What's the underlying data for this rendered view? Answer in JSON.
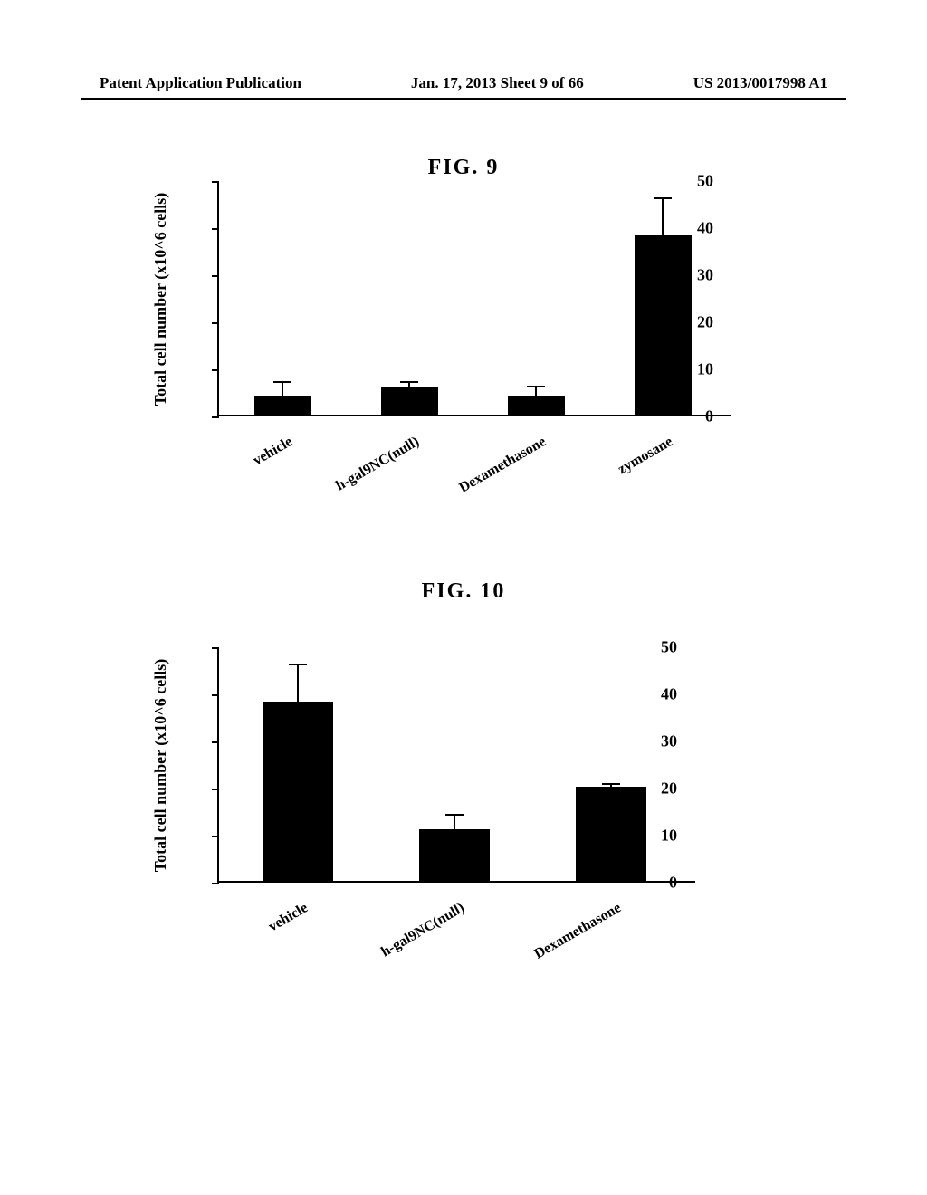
{
  "header": {
    "left": "Patent Application Publication",
    "center": "Jan. 17, 2013  Sheet 9 of 66",
    "right": "US 2013/0017998 A1"
  },
  "figure9": {
    "title": "FIG.  9",
    "type": "bar",
    "y_label": "Total cell number (x10^6 cells)",
    "ylim": [
      0,
      50
    ],
    "yticks": [
      0,
      10,
      20,
      30,
      40,
      50
    ],
    "categories": [
      "vehicle",
      "h-gal9NC(null)",
      "Dexamethasone",
      "zymosane"
    ],
    "values": [
      4,
      6,
      4,
      38
    ],
    "errors": [
      3,
      1,
      2,
      8
    ],
    "bar_color": "#000000",
    "background_color": "#ffffff",
    "bar_width": 0.45,
    "label_fontsize": 18,
    "tick_fontsize": 16
  },
  "figure10": {
    "title": "FIG.  10",
    "type": "bar",
    "y_label": "Total cell number (x10^6 cells)",
    "ylim": [
      0,
      50
    ],
    "yticks": [
      0,
      10,
      20,
      30,
      40,
      50
    ],
    "categories": [
      "vehicle",
      "h-gal9NC(null)",
      "Dexamethasone"
    ],
    "values": [
      38,
      11,
      20
    ],
    "errors": [
      8,
      3,
      0.5
    ],
    "bar_color": "#000000",
    "background_color": "#ffffff",
    "bar_width": 0.45,
    "label_fontsize": 18,
    "tick_fontsize": 16
  }
}
